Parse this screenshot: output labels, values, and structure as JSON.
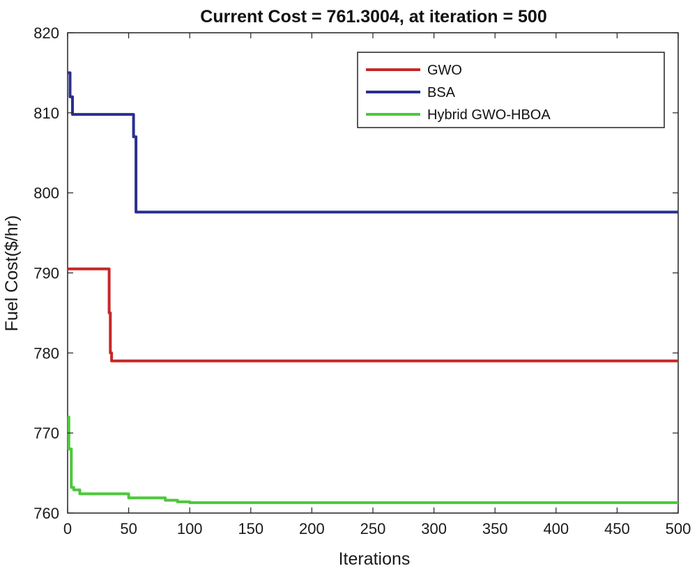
{
  "chart_data": {
    "type": "line",
    "title": "Current Cost = 761.3004, at iteration = 500",
    "xlabel": "Iterations",
    "ylabel": "Fuel Cost($/hr)",
    "xlim": [
      0,
      500
    ],
    "ylim": [
      760,
      820
    ],
    "xticks": [
      0,
      50,
      100,
      150,
      200,
      250,
      300,
      350,
      400,
      450,
      500
    ],
    "yticks": [
      760,
      770,
      780,
      790,
      800,
      810,
      820
    ],
    "grid": false,
    "legend_position": "top-right",
    "series": [
      {
        "name": "GWO",
        "color": "#c62828",
        "step": true,
        "x": [
          0,
          34,
          34,
          35,
          35,
          36,
          36,
          500
        ],
        "y": [
          790.5,
          790.5,
          785,
          785,
          780,
          780,
          779,
          779
        ]
      },
      {
        "name": "BSA",
        "color": "#2b2f8f",
        "step": true,
        "x": [
          0,
          2,
          2,
          4,
          4,
          54,
          54,
          56,
          56,
          500
        ],
        "y": [
          815,
          815,
          812,
          812,
          809.8,
          809.8,
          807,
          807,
          797.6,
          797.6
        ]
      },
      {
        "name": "Hybrid GWO-HBOA",
        "color": "#4cc93a",
        "step": true,
        "x": [
          0,
          1,
          1,
          3,
          3,
          5,
          5,
          10,
          10,
          50,
          50,
          80,
          80,
          90,
          90,
          100,
          100,
          500
        ],
        "y": [
          772,
          772,
          768,
          768,
          763.2,
          763.2,
          762.9,
          762.9,
          762.4,
          762.4,
          761.9,
          761.9,
          761.6,
          761.6,
          761.4,
          761.4,
          761.3,
          761.3
        ]
      }
    ]
  }
}
